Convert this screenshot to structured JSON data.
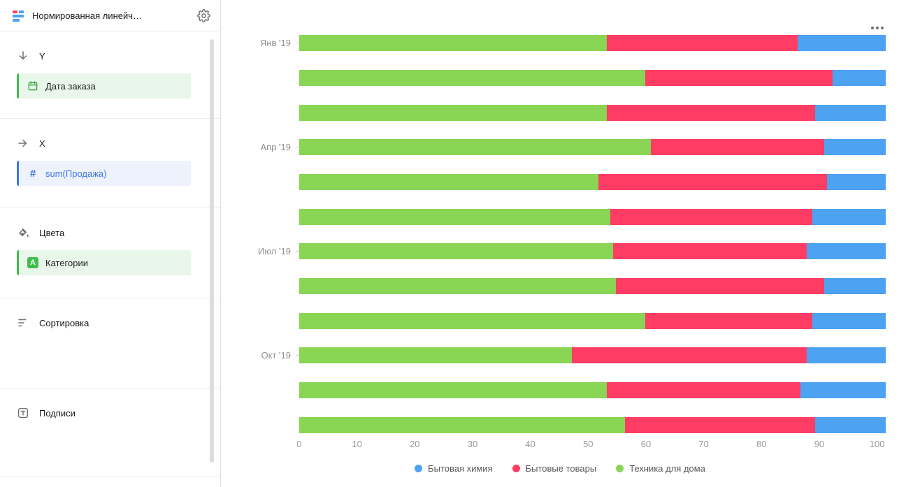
{
  "colors": {
    "blue": "#4DA2F1",
    "red": "#FF3D64",
    "green": "#8AD554",
    "chip_green_border": "#3FBE4C",
    "chip_blue_border": "#3E74F0"
  },
  "icons": {
    "hash": "#",
    "letter_a": "A"
  },
  "sidebar": {
    "title": "Нормированная линейч…",
    "sections": [
      {
        "label": "Y",
        "field": {
          "label": "Дата заказа"
        }
      },
      {
        "label": "X",
        "field": {
          "label": "sum(Продажа)"
        }
      },
      {
        "label": "Цвета",
        "field": {
          "label": "Категории"
        }
      },
      {
        "label": "Сортировка"
      },
      {
        "label": "Подписи"
      }
    ]
  },
  "chart_data": {
    "type": "bar",
    "orientation": "horizontal",
    "stacking": "percent",
    "grid": false,
    "legend_position": "bottom",
    "categories": [
      "Янв '19",
      "",
      "",
      "Апр '19",
      "",
      "",
      "Июл '19",
      "",
      "",
      "Окт '19",
      "",
      ""
    ],
    "series": [
      {
        "name": "Техника для дома",
        "color": "#8AD554",
        "values": [
          52.5,
          59,
          52.5,
          60,
          51,
          53,
          53.5,
          54,
          59,
          46.5,
          52.5,
          55.5
        ]
      },
      {
        "name": "Бытовые товары",
        "color": "#FF3D64",
        "values": [
          32.5,
          32,
          35.5,
          29.5,
          39,
          34.5,
          33,
          35.5,
          28.5,
          40,
          33,
          32.5
        ]
      },
      {
        "name": "Бытовая химия",
        "color": "#4DA2F1",
        "values": [
          15,
          9,
          12,
          10.5,
          10,
          12.5,
          13.5,
          10.5,
          12.5,
          13.5,
          14.5,
          12
        ]
      }
    ],
    "legend": [
      {
        "label": "Бытовая химия",
        "color": "#4DA2F1"
      },
      {
        "label": "Бытовые товары",
        "color": "#FF3D64"
      },
      {
        "label": "Техника для дома",
        "color": "#8AD554"
      }
    ],
    "x_ticks": [
      0,
      10,
      20,
      30,
      40,
      50,
      60,
      70,
      80,
      90,
      100
    ],
    "x_max": 101.5,
    "xlim": [
      0,
      101.5
    ]
  }
}
